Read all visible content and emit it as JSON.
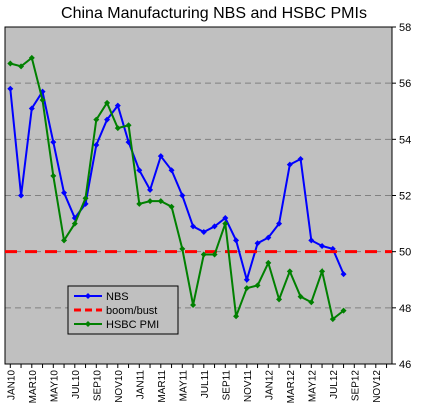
{
  "chart_data": {
    "type": "line",
    "title": "China Manufacturing NBS and HSBC  PMIs",
    "xlabel": "",
    "ylabel": "",
    "ylim": [
      46,
      58
    ],
    "yticks": [
      46,
      48,
      50,
      52,
      54,
      56,
      58
    ],
    "y_axis_side": "right",
    "grid": "horizontal dashed",
    "legend_position": "bottom-left",
    "x_tick_labels": [
      "JAN10",
      "MAR10",
      "MAY10",
      "JUL10",
      "SEP10",
      "NOV10",
      "JAN11",
      "MAR11",
      "MAY11",
      "JUL11",
      "SEP11",
      "NOV11",
      "JAN12",
      "MAR12",
      "MAY12",
      "JUL12",
      "SEP12",
      "NOV12"
    ],
    "colors": {
      "plot_background": "#c0c0c0",
      "gridline": "#808080",
      "nbs": "#0000ff",
      "boom_bust": "#ff0000",
      "hsbc": "#008000"
    },
    "series": [
      {
        "name": "NBS",
        "color": "#0000ff",
        "values": [
          55.8,
          52.0,
          55.1,
          55.7,
          53.9,
          52.1,
          51.2,
          51.7,
          53.8,
          54.7,
          55.2,
          53.9,
          52.9,
          52.2,
          53.4,
          52.9,
          52.0,
          50.9,
          50.7,
          50.9,
          51.2,
          50.4,
          49.0,
          50.3,
          50.5,
          51.0,
          53.1,
          53.3,
          50.4,
          50.2,
          50.1,
          49.2
        ]
      },
      {
        "name": "boom/bust",
        "color": "#ff0000",
        "dashed": true,
        "values": [
          50,
          50
        ]
      },
      {
        "name": "HSBC PMI",
        "color": "#008000",
        "values": [
          56.7,
          56.6,
          56.9,
          55.4,
          52.7,
          50.4,
          51.0,
          51.9,
          54.7,
          55.3,
          54.4,
          54.5,
          51.7,
          51.8,
          51.8,
          51.6,
          50.1,
          48.1,
          49.9,
          49.9,
          51.0,
          47.7,
          48.7,
          48.8,
          49.6,
          48.3,
          49.3,
          48.4,
          48.2,
          49.3,
          47.6,
          47.9
        ]
      }
    ]
  }
}
